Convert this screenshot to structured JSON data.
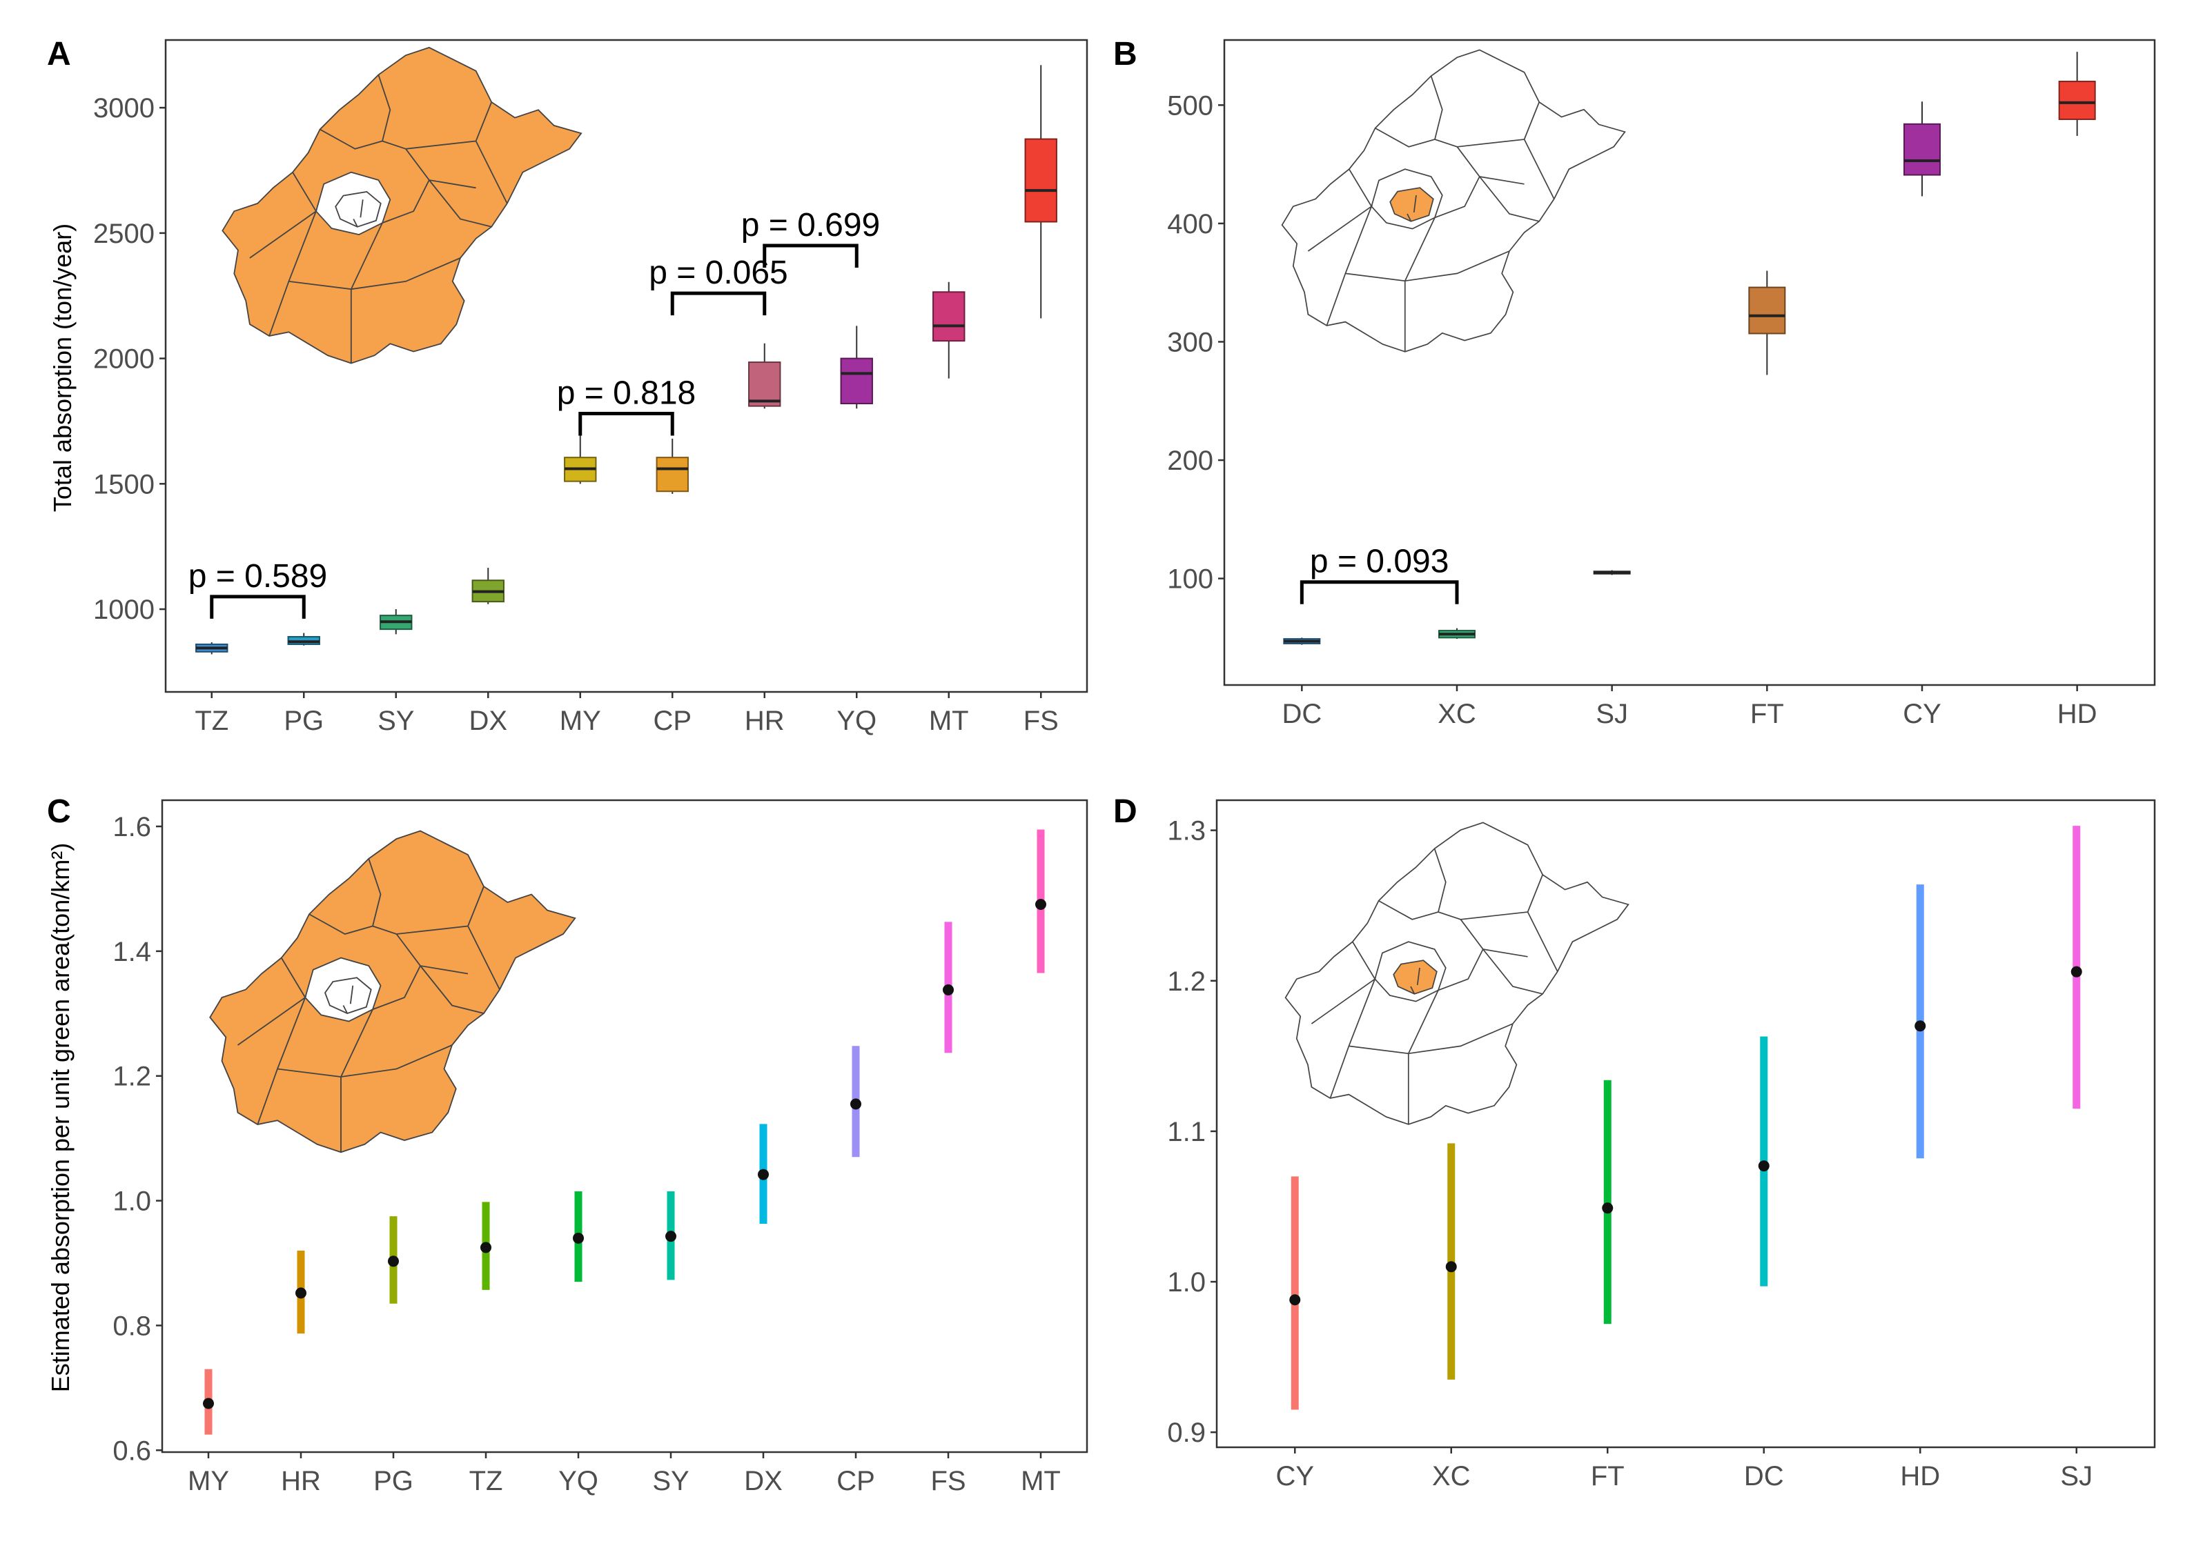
{
  "chart_data": [
    {
      "id": "A",
      "panel_label": "A",
      "type": "box",
      "ylabel": "Total absorption (ton/year)",
      "ylim": [
        670,
        3270
      ],
      "yticks": [
        1000,
        1500,
        2000,
        2500,
        3000
      ],
      "categories": [
        "TZ",
        "PG",
        "SY",
        "DX",
        "MY",
        "CP",
        "HR",
        "YQ",
        "MT",
        "FS"
      ],
      "colors": [
        "#3b8dd0",
        "#2a9bc2",
        "#35a872",
        "#7fa52c",
        "#d1b31a",
        "#e69e28",
        "#c2637c",
        "#a0309d",
        "#cc3878",
        "#ef3f33"
      ],
      "boxes": [
        {
          "min": 820,
          "q1": 830,
          "median": 845,
          "q3": 860,
          "max": 868
        },
        {
          "min": 855,
          "q1": 860,
          "median": 870,
          "q3": 890,
          "max": 905
        },
        {
          "min": 900,
          "q1": 920,
          "median": 950,
          "q3": 975,
          "max": 1000
        },
        {
          "min": 1020,
          "q1": 1030,
          "median": 1070,
          "q3": 1115,
          "max": 1165
        },
        {
          "min": 1500,
          "q1": 1510,
          "median": 1560,
          "q3": 1605,
          "max": 1705
        },
        {
          "min": 1460,
          "q1": 1470,
          "median": 1560,
          "q3": 1605,
          "max": 1680
        },
        {
          "min": 1800,
          "q1": 1810,
          "median": 1830,
          "q3": 1985,
          "max": 2060
        },
        {
          "min": 1800,
          "q1": 1820,
          "median": 1940,
          "q3": 2000,
          "max": 2130
        },
        {
          "min": 1920,
          "q1": 2070,
          "median": 2130,
          "q3": 2265,
          "max": 2305
        },
        {
          "min": 2160,
          "q1": 2545,
          "median": 2670,
          "q3": 2875,
          "max": 3170
        }
      ],
      "comparisons": [
        {
          "from": 0,
          "to": 1,
          "label": "p = 0.589",
          "y": 1050
        },
        {
          "from": 4,
          "to": 5,
          "label": "p = 0.818",
          "y": 1780
        },
        {
          "from": 5,
          "to": 6,
          "label": "p = 0.065",
          "y": 2260
        },
        {
          "from": 6,
          "to": 7,
          "label": "p = 0.699",
          "y": 2450
        }
      ],
      "map_highlight": "outer"
    },
    {
      "id": "B",
      "panel_label": "B",
      "type": "box",
      "ylabel": "",
      "ylim": [
        10,
        555
      ],
      "yticks": [
        100,
        200,
        300,
        400,
        500
      ],
      "categories": [
        "DC",
        "XC",
        "SJ",
        "FT",
        "CY",
        "HD"
      ],
      "colors": [
        "#3b8dd0",
        "#35a872",
        "#404040",
        "#c77b3a",
        "#a0309d",
        "#ef3f33"
      ],
      "boxes": [
        {
          "min": 44,
          "q1": 45,
          "median": 47,
          "q3": 49,
          "max": 50
        },
        {
          "min": 49,
          "q1": 50,
          "median": 53,
          "q3": 56,
          "max": 58
        },
        {
          "min": 103,
          "q1": 104,
          "median": 105,
          "q3": 106,
          "max": 107
        },
        {
          "min": 272,
          "q1": 307,
          "median": 322,
          "q3": 346,
          "max": 360
        },
        {
          "min": 423,
          "q1": 441,
          "median": 453,
          "q3": 484,
          "max": 503
        },
        {
          "min": 474,
          "q1": 488,
          "median": 502,
          "q3": 520,
          "max": 545
        }
      ],
      "comparisons": [
        {
          "from": 0,
          "to": 1,
          "label": "p = 0.093",
          "y": 97
        }
      ],
      "map_highlight": "core"
    },
    {
      "id": "C",
      "panel_label": "C",
      "type": "pointrange",
      "ylabel": "Estimated absorption per unit green area(ton/km²)",
      "ylim": [
        0.597,
        1.642
      ],
      "yticks": [
        0.6,
        0.8,
        1.0,
        1.2,
        1.4,
        1.6
      ],
      "ytick_labels": [
        "0.6",
        "0.8",
        "1.0",
        "1.2",
        "1.4",
        "1.6"
      ],
      "categories": [
        "MY",
        "HR",
        "PG",
        "TZ",
        "YQ",
        "SY",
        "DX",
        "CP",
        "FS",
        "MT"
      ],
      "colors": [
        "#f8766d",
        "#d39200",
        "#93aa00",
        "#5bb300",
        "#00ba38",
        "#00c19f",
        "#00b9e3",
        "#9c8ff5",
        "#f564e3",
        "#ff61c3"
      ],
      "points": [
        {
          "value": 0.675,
          "low": 0.625,
          "high": 0.73
        },
        {
          "value": 0.852,
          "low": 0.787,
          "high": 0.92
        },
        {
          "value": 0.903,
          "low": 0.835,
          "high": 0.975
        },
        {
          "value": 0.925,
          "low": 0.857,
          "high": 0.998
        },
        {
          "value": 0.94,
          "low": 0.87,
          "high": 1.015
        },
        {
          "value": 0.943,
          "low": 0.873,
          "high": 1.015
        },
        {
          "value": 1.042,
          "low": 0.963,
          "high": 1.123
        },
        {
          "value": 1.155,
          "low": 1.07,
          "high": 1.248
        },
        {
          "value": 1.338,
          "low": 1.237,
          "high": 1.447
        },
        {
          "value": 1.475,
          "low": 1.365,
          "high": 1.595
        }
      ],
      "map_highlight": "outer"
    },
    {
      "id": "D",
      "panel_label": "D",
      "type": "pointrange",
      "ylabel": "",
      "ylim": [
        0.89,
        1.32
      ],
      "yticks": [
        0.9,
        1.0,
        1.1,
        1.2,
        1.3
      ],
      "ytick_labels": [
        "0.9",
        "1.0",
        "1.1",
        "1.2",
        "1.3"
      ],
      "categories": [
        "CY",
        "XC",
        "FT",
        "DC",
        "HD",
        "SJ"
      ],
      "colors": [
        "#f8766d",
        "#b79f00",
        "#00ba38",
        "#00bfc4",
        "#619cff",
        "#f564e3"
      ],
      "points": [
        {
          "value": 0.988,
          "low": 0.915,
          "high": 1.07
        },
        {
          "value": 1.01,
          "low": 0.935,
          "high": 1.092
        },
        {
          "value": 1.049,
          "low": 0.972,
          "high": 1.134
        },
        {
          "value": 1.077,
          "low": 0.997,
          "high": 1.163
        },
        {
          "value": 1.17,
          "low": 1.082,
          "high": 1.264
        },
        {
          "value": 1.206,
          "low": 1.115,
          "high": 1.303
        }
      ],
      "map_highlight": "core"
    }
  ]
}
